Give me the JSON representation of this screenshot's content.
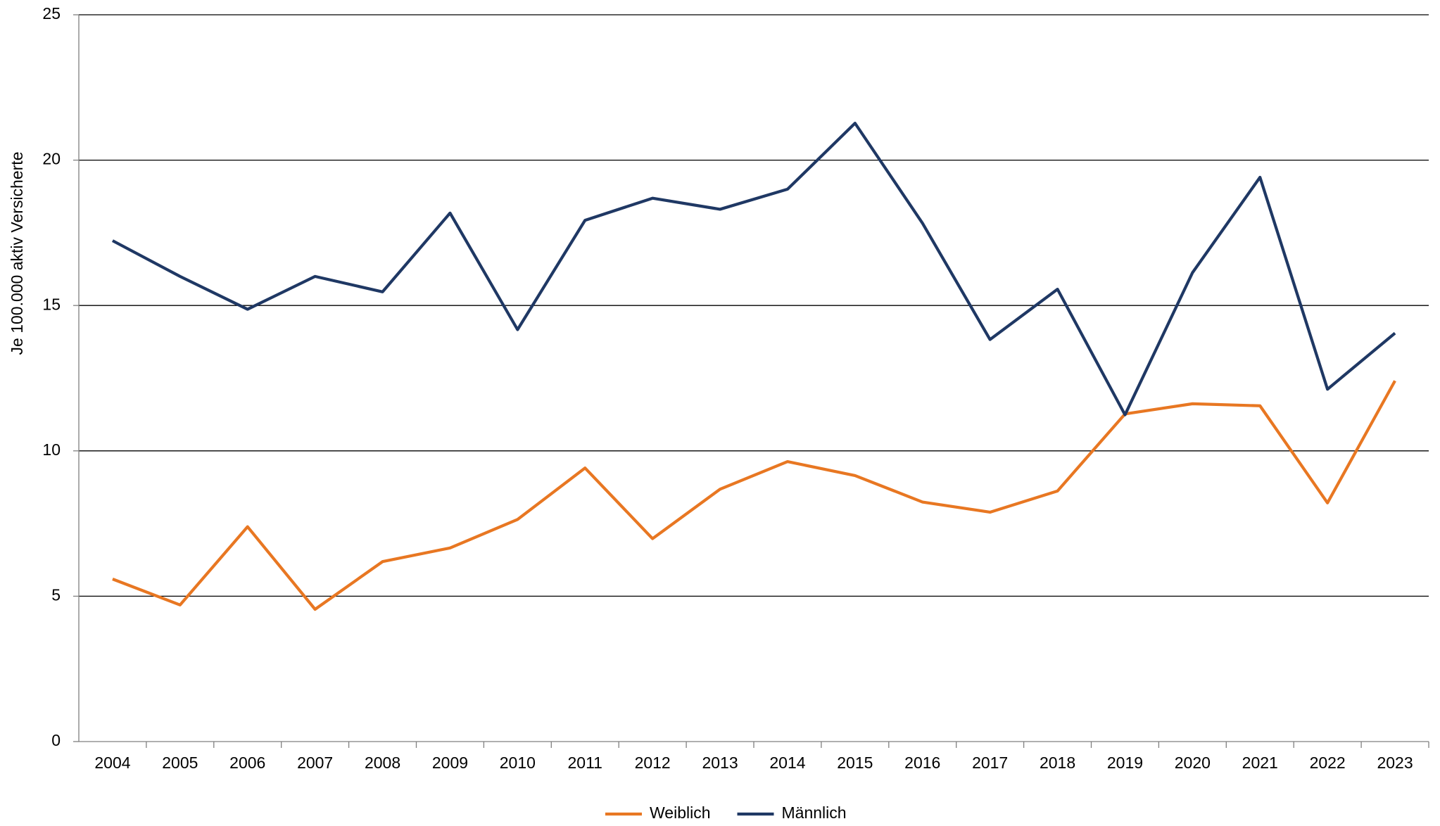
{
  "chart_data": {
    "type": "line",
    "y_label": "Je 100.000 aktiv Versicherte",
    "categories": [
      "2004",
      "2005",
      "2006",
      "2007",
      "2008",
      "2009",
      "2010",
      "2011",
      "2012",
      "2013",
      "2014",
      "2015",
      "2016",
      "2017",
      "2018",
      "2019",
      "2020",
      "2021",
      "2022",
      "2023"
    ],
    "series": [
      {
        "name": "Weiblich",
        "color": "#e87722",
        "values": [
          5.59,
          4.7,
          7.39,
          4.55,
          6.19,
          6.66,
          7.64,
          9.41,
          6.98,
          8.68,
          9.63,
          9.15,
          8.24,
          7.89,
          8.62,
          11.27,
          11.62,
          11.55,
          8.21,
          12.41
        ]
      },
      {
        "name": "Männlich",
        "color": "#1f3864",
        "values": [
          17.23,
          16.0,
          14.87,
          16.0,
          15.47,
          18.18,
          14.17,
          17.93,
          18.69,
          18.31,
          19.0,
          21.27,
          17.83,
          13.83,
          15.56,
          11.24,
          16.13,
          19.41,
          12.12,
          14.05
        ]
      }
    ],
    "ylim": [
      0,
      25
    ],
    "yticks": [
      0,
      5,
      10,
      15,
      20,
      25
    ],
    "grid": true,
    "legend": "bottom"
  }
}
